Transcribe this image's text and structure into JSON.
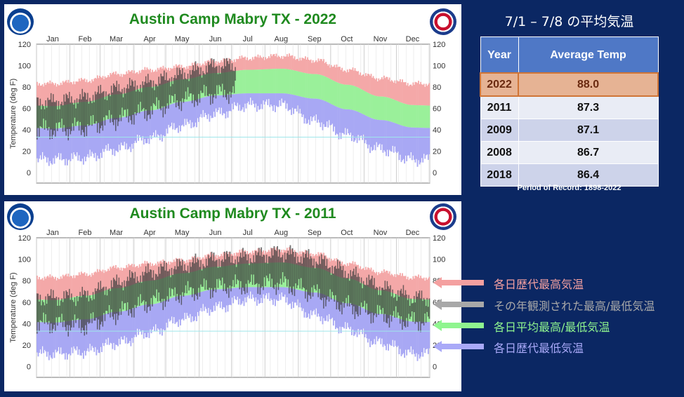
{
  "right_title": "7/1 – 7/8 の平均気温",
  "table": {
    "headers": [
      "Year",
      "Average Temp"
    ],
    "rows": [
      {
        "year": "2022",
        "temp": "88.0"
      },
      {
        "year": "2011",
        "temp": "87.3"
      },
      {
        "year": "2009",
        "temp": "87.1"
      },
      {
        "year": "2008",
        "temp": "86.7"
      },
      {
        "year": "2018",
        "temp": "86.4"
      }
    ]
  },
  "period": "Period of Record: 1898-2022",
  "legend": [
    {
      "label": "各日歴代最高気温",
      "color": "#f4a0a0"
    },
    {
      "label": "その年観測された最高/最低気温",
      "color": "#a8a8a8"
    },
    {
      "label": "各日平均最高/最低気温",
      "color": "#8ff58f"
    },
    {
      "label": "各日歴代最低気温",
      "color": "#a9a9f8"
    }
  ],
  "colors": {
    "record_high": "#f4a8a8",
    "normal_band": "#9af09a",
    "record_low": "#a8a8f4",
    "observed": "#3d3d3d",
    "title": "#1f8a1f"
  },
  "chart_data": [
    {
      "type": "area",
      "title": "Austin Camp Mabry TX - 2022",
      "ylabel": "Temperature (deg F)",
      "ylim": [
        -10,
        120
      ],
      "yticks": [
        0,
        20,
        40,
        60,
        80,
        100,
        120
      ],
      "months": [
        "Jan",
        "Feb",
        "Mar",
        "Apr",
        "May",
        "Jun",
        "Jul",
        "Aug",
        "Sep",
        "Oct",
        "Nov",
        "Dec"
      ],
      "x_days": [
        15,
        45,
        74,
        105,
        135,
        166,
        196,
        227,
        258,
        288,
        319,
        349
      ],
      "record_high": [
        83,
        86,
        92,
        96,
        99,
        104,
        107,
        109,
        105,
        96,
        88,
        83
      ],
      "normal_high": [
        62,
        66,
        73,
        80,
        87,
        93,
        96,
        97,
        92,
        82,
        71,
        63
      ],
      "normal_low": [
        41,
        44,
        51,
        58,
        66,
        72,
        74,
        74,
        69,
        59,
        49,
        42
      ],
      "record_low": [
        12,
        14,
        22,
        32,
        44,
        55,
        63,
        63,
        48,
        35,
        22,
        12
      ],
      "observed_high": [
        66,
        70,
        78,
        84,
        92,
        100,
        100
      ],
      "observed_low": [
        40,
        42,
        50,
        58,
        68,
        74,
        76
      ],
      "observed_through_day": 185,
      "reference_line": 33
    },
    {
      "type": "area",
      "title": "Austin Camp Mabry TX - 2011",
      "ylabel": "Temperature (deg F)",
      "ylim": [
        -10,
        120
      ],
      "yticks": [
        0,
        20,
        40,
        60,
        80,
        100,
        120
      ],
      "months": [
        "Jan",
        "Feb",
        "Mar",
        "Apr",
        "May",
        "Jun",
        "Jul",
        "Aug",
        "Sep",
        "Oct",
        "Nov",
        "Dec"
      ],
      "x_days": [
        15,
        45,
        74,
        105,
        135,
        166,
        196,
        227,
        258,
        288,
        319,
        349
      ],
      "record_high": [
        83,
        86,
        92,
        96,
        99,
        104,
        107,
        109,
        105,
        96,
        88,
        83
      ],
      "normal_high": [
        62,
        66,
        73,
        80,
        87,
        93,
        96,
        97,
        92,
        82,
        71,
        63
      ],
      "normal_low": [
        41,
        44,
        51,
        58,
        66,
        72,
        74,
        74,
        69,
        59,
        49,
        42
      ],
      "record_low": [
        12,
        14,
        22,
        32,
        44,
        55,
        63,
        63,
        48,
        35,
        22,
        12
      ],
      "observed_high": [
        64,
        66,
        78,
        88,
        94,
        100,
        102,
        106,
        100,
        88,
        74,
        64
      ],
      "observed_low": [
        40,
        38,
        50,
        60,
        68,
        74,
        76,
        78,
        68,
        56,
        48,
        42
      ],
      "observed_through_day": 365,
      "reference_line": 33
    }
  ]
}
